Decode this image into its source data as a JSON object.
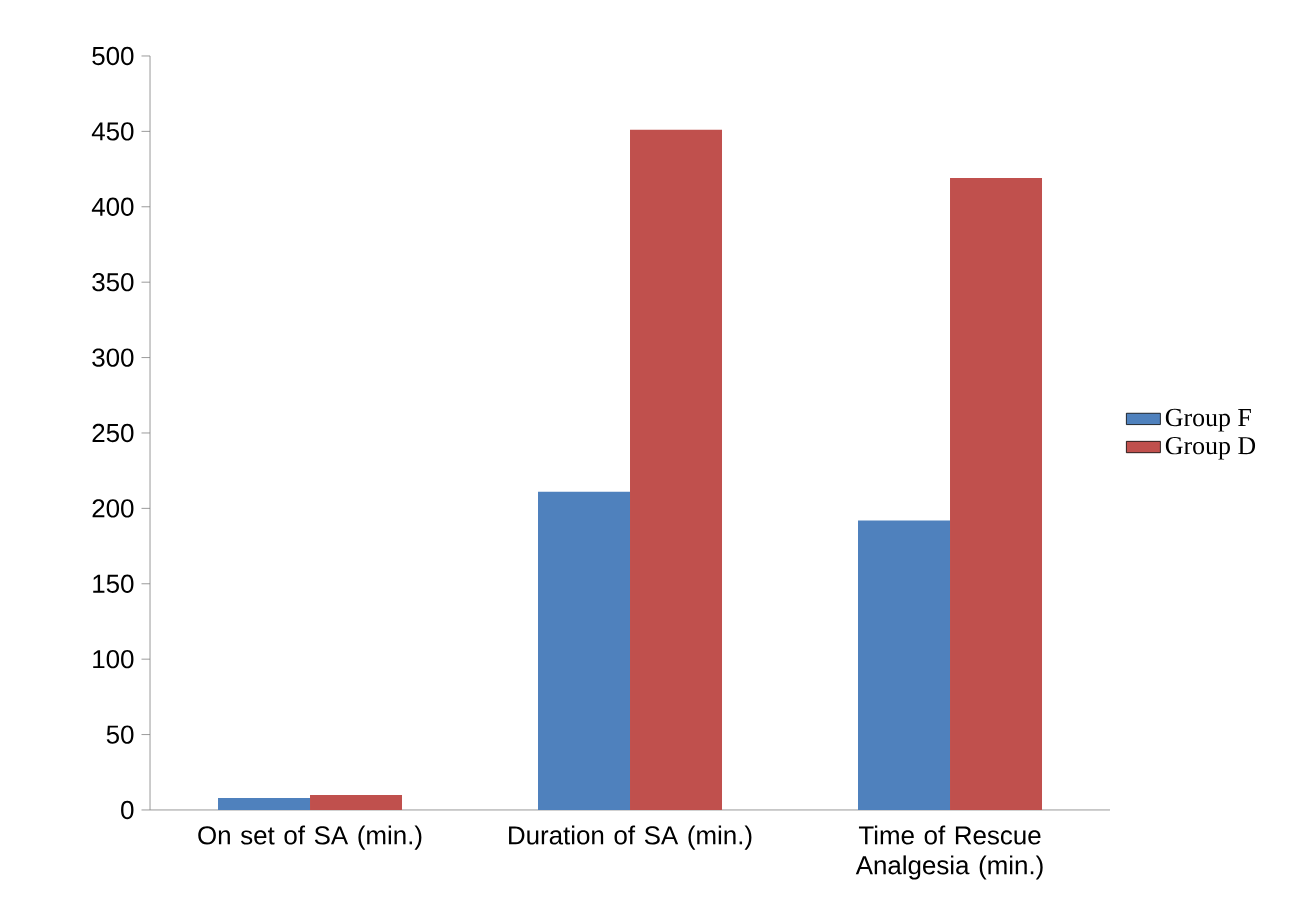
{
  "chart_data": {
    "type": "bar",
    "categories": [
      "On set of SA (min.)",
      "Duration of SA (min.)",
      "Time of Rescue Analgesia (min.)"
    ],
    "series": [
      {
        "name": "Group F",
        "color": "#4f81bd",
        "values": [
          8,
          211,
          192
        ]
      },
      {
        "name": "Group D",
        "color": "#c0504d",
        "values": [
          10,
          451,
          419
        ]
      }
    ],
    "ylim": [
      0,
      500
    ],
    "yticks": [
      0,
      50,
      100,
      150,
      200,
      250,
      300,
      350,
      400,
      450,
      500
    ],
    "legend": "right"
  }
}
